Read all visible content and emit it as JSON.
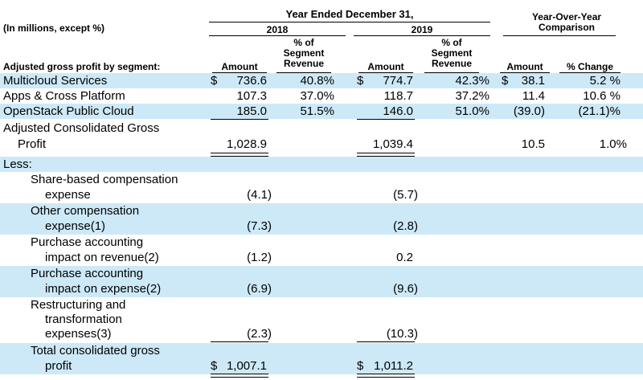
{
  "header": {
    "units_note": "(In millions, except %)",
    "period_title": "Year Ended December 31,",
    "yoy_title_1": "Year-Over-Year",
    "yoy_title_2": "Comparison",
    "year_2018": "2018",
    "year_2019": "2019",
    "segment_caption": "Adjusted gross profit by segment:",
    "col_amount": "Amount",
    "col_pct_1": "% of",
    "col_pct_2": "Segment",
    "col_pct_3": "Revenue",
    "col_yoy_amount": "Amount",
    "col_yoy_change": "% Change"
  },
  "segments": [
    {
      "label": "Multicloud Services",
      "cur18": "$",
      "amt18": "736.6",
      "pct18": "40.8%",
      "cur19": "$",
      "amt19": "774.7",
      "pct19": "42.3%",
      "yoycur": "$",
      "yoyamt": "38.1",
      "yoypct": "5.2 %"
    },
    {
      "label": "Apps & Cross Platform",
      "cur18": "",
      "amt18": "107.3",
      "pct18": "37.0%",
      "cur19": "",
      "amt19": "118.7",
      "pct19": "37.2%",
      "yoycur": "",
      "yoyamt": "11.4",
      "yoypct": "10.6 %"
    },
    {
      "label": "OpenStack Public Cloud",
      "cur18": "",
      "amt18": "185.0",
      "pct18": "51.5%",
      "cur19": "",
      "amt19": "146.0",
      "pct19": "51.0%",
      "yoycur": "",
      "yoyamt": "(39.0)",
      "yoypct": "(21.1)%"
    }
  ],
  "consolidated": {
    "label_1": "Adjusted Consolidated Gross",
    "label_2": "Profit",
    "amt18": "1,028.9",
    "amt19": "1,039.4",
    "yoyamt": "10.5",
    "yoypct": "1.0%"
  },
  "less_label": "Less:",
  "adjustments": [
    {
      "lines": [
        "Share-based compensation",
        "expense"
      ],
      "amt18": "(4.1)",
      "amt19": "(5.7)"
    },
    {
      "lines": [
        "Other compensation",
        "expense(1)"
      ],
      "amt18": "(7.3)",
      "amt19": "(2.8)"
    },
    {
      "lines": [
        "Purchase accounting",
        "impact on revenue(2)"
      ],
      "amt18": "(1.2)",
      "amt19": "0.2"
    },
    {
      "lines": [
        "Purchase accounting",
        "impact on expense(2)"
      ],
      "amt18": "(6.9)",
      "amt19": "(9.6)"
    },
    {
      "lines": [
        "Restructuring and",
        "transformation",
        "expenses(3)"
      ],
      "amt18": "(2.3)",
      "amt19": "(10.3)"
    }
  ],
  "total": {
    "label_1": "Total consolidated gross",
    "label_2": "profit",
    "cur18": "$",
    "amt18": "1,007.1",
    "cur19": "$",
    "amt19": "1,011.2"
  }
}
